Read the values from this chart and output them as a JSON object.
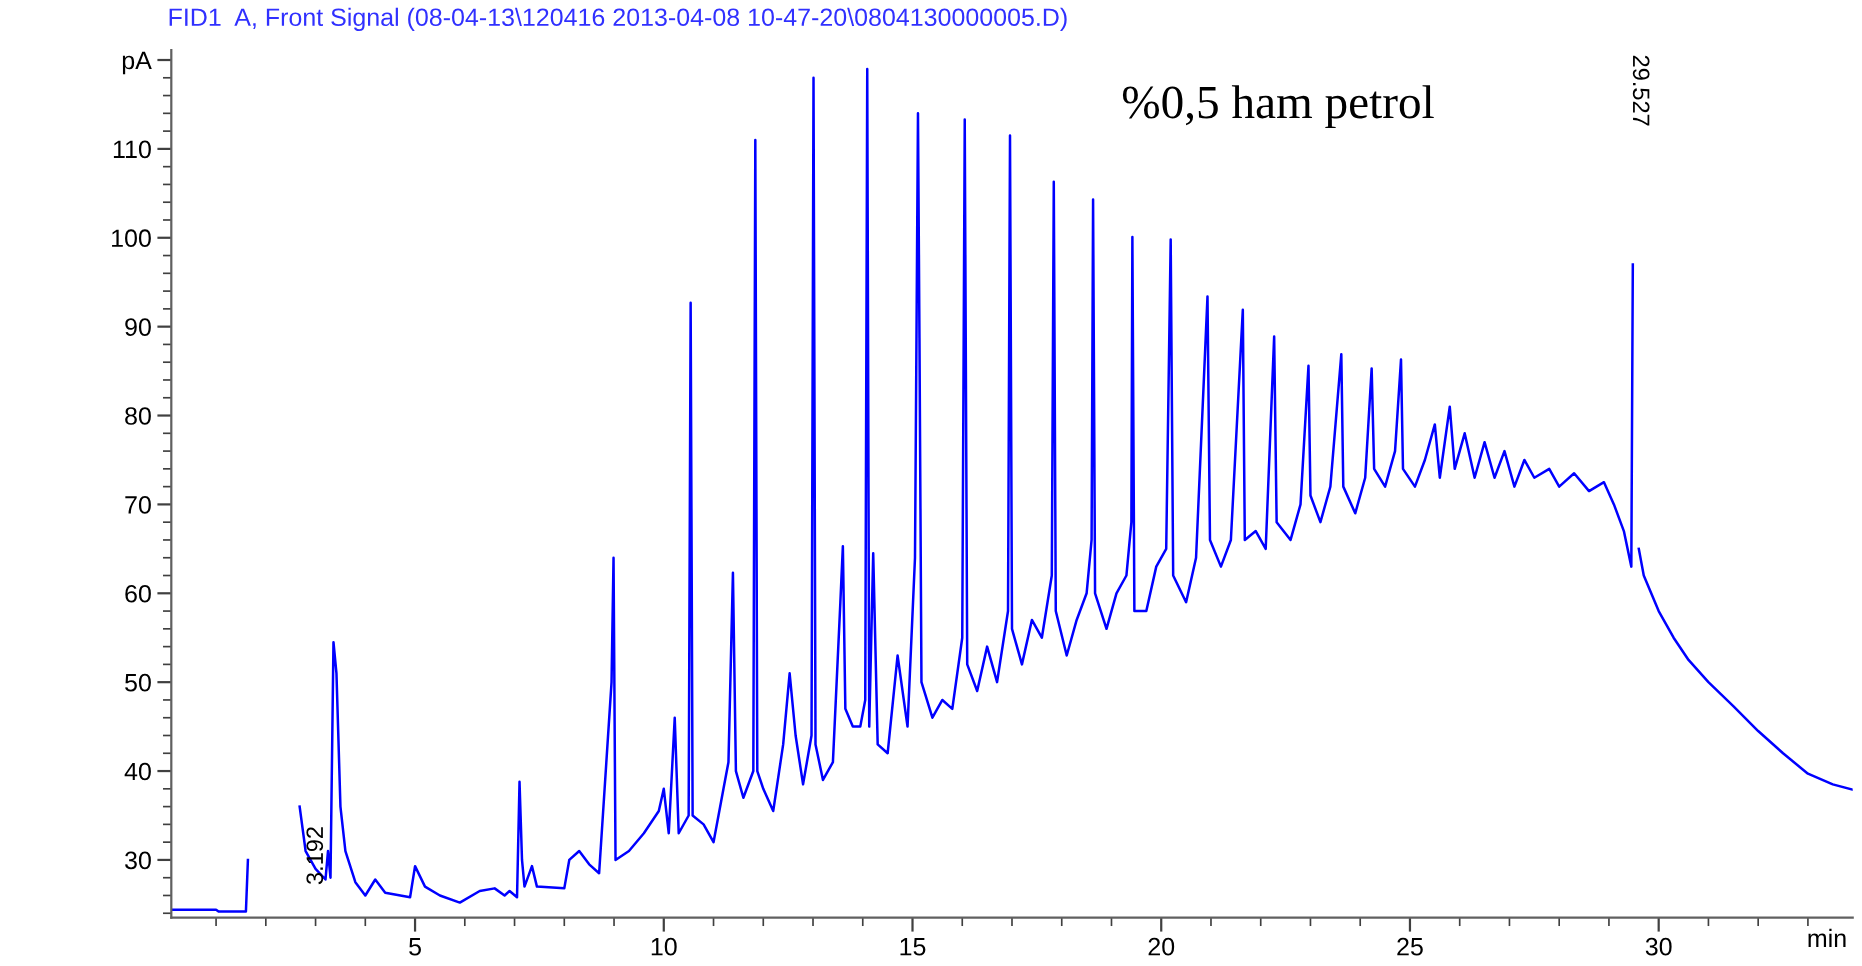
{
  "chart_data": {
    "type": "line",
    "title": "FID1  A, Front Signal (08-04-13\\120416 2013-04-08 10-47-20\\0804130000005.D)",
    "xlabel": "min",
    "x": [
      0.1,
      1.0,
      1.05,
      1.6,
      1.64,
      1.68,
      2.65,
      2.68,
      2.8,
      3.0,
      3.2,
      3.25,
      3.3,
      3.36,
      3.42,
      3.5,
      3.6,
      3.8,
      4.0,
      4.2,
      4.4,
      4.9,
      5.0,
      5.2,
      5.5,
      5.9,
      6.3,
      6.6,
      6.8,
      6.9,
      7.05,
      7.1,
      7.15,
      7.2,
      7.35,
      7.45,
      8.0,
      8.1,
      8.3,
      8.5,
      8.7,
      8.95,
      8.99,
      9.03,
      9.3,
      9.6,
      9.9,
      10.0,
      10.1,
      10.22,
      10.3,
      10.5,
      10.54,
      10.58,
      10.8,
      11.0,
      11.2,
      11.3,
      11.39,
      11.45,
      11.6,
      11.8,
      11.84,
      11.88,
      12.0,
      12.2,
      12.4,
      12.53,
      12.65,
      12.8,
      12.97,
      13.01,
      13.05,
      13.2,
      13.4,
      13.55,
      13.6,
      13.65,
      13.8,
      13.95,
      14.05,
      14.09,
      14.13,
      14.21,
      14.3,
      14.5,
      14.7,
      14.9,
      15.05,
      15.11,
      15.14,
      15.18,
      15.4,
      15.6,
      15.8,
      16.0,
      16.05,
      16.1,
      16.3,
      16.5,
      16.7,
      16.92,
      16.96,
      17.0,
      17.2,
      17.4,
      17.6,
      17.8,
      17.84,
      17.88,
      18.1,
      18.3,
      18.5,
      18.6,
      18.63,
      18.67,
      18.9,
      19.1,
      19.3,
      19.4,
      19.42,
      19.46,
      19.7,
      19.9,
      20.1,
      20.19,
      20.24,
      20.5,
      20.7,
      20.93,
      20.98,
      21.2,
      21.4,
      21.64,
      21.68,
      21.9,
      22.1,
      22.27,
      22.32,
      22.6,
      22.8,
      22.96,
      23.0,
      23.2,
      23.4,
      23.62,
      23.66,
      23.9,
      24.1,
      24.23,
      24.28,
      24.5,
      24.7,
      24.82,
      24.86,
      25.1,
      25.3,
      25.5,
      25.6,
      25.8,
      25.9,
      26.1,
      26.3,
      26.5,
      26.7,
      26.9,
      27.1,
      27.3,
      27.5,
      27.8,
      28.0,
      28.3,
      28.6,
      28.9,
      29.1,
      29.3,
      29.45,
      29.48,
      29.527,
      29.56,
      29.6,
      29.7,
      30.0,
      30.3,
      30.6,
      31.0,
      31.5,
      32.0,
      32.5,
      33.0,
      33.5,
      33.9
    ],
    "series": [
      {
        "color": "#0000ff",
        "values": [
          24.4,
          24.4,
          24.2,
          24.2,
          30,
          null,
          null,
          36,
          31,
          29,
          27.8,
          31,
          28,
          54.5,
          51,
          36,
          31,
          27.5,
          26,
          27.8,
          26.3,
          25.8,
          29.3,
          27,
          26,
          25.2,
          26.5,
          26.8,
          26,
          26.5,
          25.8,
          38.8,
          30,
          27,
          29.3,
          27,
          26.8,
          30,
          31,
          29.5,
          28.5,
          50,
          64,
          30,
          31,
          33,
          35.5,
          38,
          33,
          46,
          33,
          35,
          92.7,
          35,
          34,
          32,
          38,
          41,
          62.3,
          40,
          37,
          40,
          111,
          40,
          38,
          35.5,
          43,
          51,
          44,
          38.5,
          44,
          118,
          43,
          39,
          41,
          59,
          65.3,
          47,
          45,
          45,
          48,
          119,
          45,
          64.5,
          43,
          42,
          53,
          45,
          64,
          114,
          88.7,
          50,
          46,
          48,
          47,
          55,
          113.3,
          52,
          49,
          54,
          50,
          58,
          111.5,
          56,
          52,
          57,
          55,
          62,
          106.3,
          58,
          53,
          57,
          60,
          66,
          104.3,
          60,
          56,
          60,
          62,
          68,
          100.1,
          58,
          58,
          63,
          65,
          99.8,
          62,
          59,
          64,
          93.4,
          66,
          63,
          66,
          91.9,
          66,
          67,
          65,
          88.9,
          68,
          66,
          70,
          85.6,
          71,
          68,
          72,
          86.9,
          72,
          69,
          73,
          85.3,
          74,
          72,
          76,
          86.3,
          74,
          72,
          75,
          79,
          73,
          81,
          74,
          78,
          73,
          77,
          73,
          76,
          72,
          75,
          73,
          74,
          72,
          73.5,
          71.5,
          72.5,
          70,
          67,
          63,
          97,
          null,
          null,
          65,
          62,
          58,
          55,
          52.5,
          50,
          47.3,
          44.5,
          42,
          39.7,
          38.5,
          37.9
        ]
      }
    ],
    "xlim": [
      0.1,
      33.9
    ],
    "ylim": [
      23.5,
      121.1
    ],
    "xticks": [
      5,
      10,
      15,
      20,
      25,
      30,
      {
        "value": 1,
        "label": null
      },
      {
        "value": 2,
        "label": null
      },
      {
        "value": 3,
        "label": null
      },
      {
        "value": 4,
        "label": null
      },
      {
        "value": 6,
        "label": null
      },
      {
        "value": 7,
        "label": null
      },
      {
        "value": 8,
        "label": null
      },
      {
        "value": 9,
        "label": null
      },
      {
        "value": 11,
        "label": null
      },
      {
        "value": 12,
        "label": null
      },
      {
        "value": 13,
        "label": null
      },
      {
        "value": 14,
        "label": null
      },
      {
        "value": 16,
        "label": null
      },
      {
        "value": 17,
        "label": null
      },
      {
        "value": 18,
        "label": null
      },
      {
        "value": 19,
        "label": null
      },
      {
        "value": 21,
        "label": null
      },
      {
        "value": 22,
        "label": null
      },
      {
        "value": 23,
        "label": null
      },
      {
        "value": 24,
        "label": null
      },
      {
        "value": 26,
        "label": null
      },
      {
        "value": 27,
        "label": null
      },
      {
        "value": 28,
        "label": null
      },
      {
        "value": 29,
        "label": null
      },
      {
        "value": 31,
        "label": null
      },
      {
        "value": 32,
        "label": null
      },
      {
        "value": 33,
        "label": null
      }
    ],
    "yticks": [
      30,
      40,
      50,
      60,
      70,
      80,
      90,
      100,
      110,
      {
        "value": 120,
        "label": "pA"
      },
      {
        "value": 24,
        "label": null
      },
      {
        "value": 26,
        "label": null
      },
      {
        "value": 28,
        "label": null
      },
      {
        "value": 32,
        "label": null
      },
      {
        "value": 34,
        "label": null
      },
      {
        "value": 36,
        "label": null
      },
      {
        "value": 38,
        "label": null
      },
      {
        "value": 42,
        "label": null
      },
      {
        "value": 44,
        "label": null
      },
      {
        "value": 46,
        "label": null
      },
      {
        "value": 48,
        "label": null
      },
      {
        "value": 52,
        "label": null
      },
      {
        "value": 54,
        "label": null
      },
      {
        "value": 56,
        "label": null
      },
      {
        "value": 58,
        "label": null
      },
      {
        "value": 62,
        "label": null
      },
      {
        "value": 64,
        "label": null
      },
      {
        "value": 66,
        "label": null
      },
      {
        "value": 68,
        "label": null
      },
      {
        "value": 72,
        "label": null
      },
      {
        "value": 74,
        "label": null
      },
      {
        "value": 76,
        "label": null
      },
      {
        "value": 78,
        "label": null
      },
      {
        "value": 82,
        "label": null
      },
      {
        "value": 84,
        "label": null
      },
      {
        "value": 86,
        "label": null
      },
      {
        "value": 88,
        "label": null
      },
      {
        "value": 92,
        "label": null
      },
      {
        "value": 94,
        "label": null
      },
      {
        "value": 96,
        "label": null
      },
      {
        "value": 98,
        "label": null
      },
      {
        "value": 102,
        "label": null
      },
      {
        "value": 104,
        "label": null
      },
      {
        "value": 106,
        "label": null
      },
      {
        "value": 108,
        "label": null
      },
      {
        "value": 112,
        "label": null
      },
      {
        "value": 114,
        "label": null
      },
      {
        "value": 116,
        "label": null
      },
      {
        "value": 118,
        "label": null
      }
    ],
    "annotations": [
      "%0,5 ham petrol",
      {
        "text": "3.192",
        "x": 3.192,
        "y": 27.8
      },
      "29.527"
    ],
    "grid": false,
    "legend": false,
    "marker": "none",
    "line_style": "solid"
  }
}
